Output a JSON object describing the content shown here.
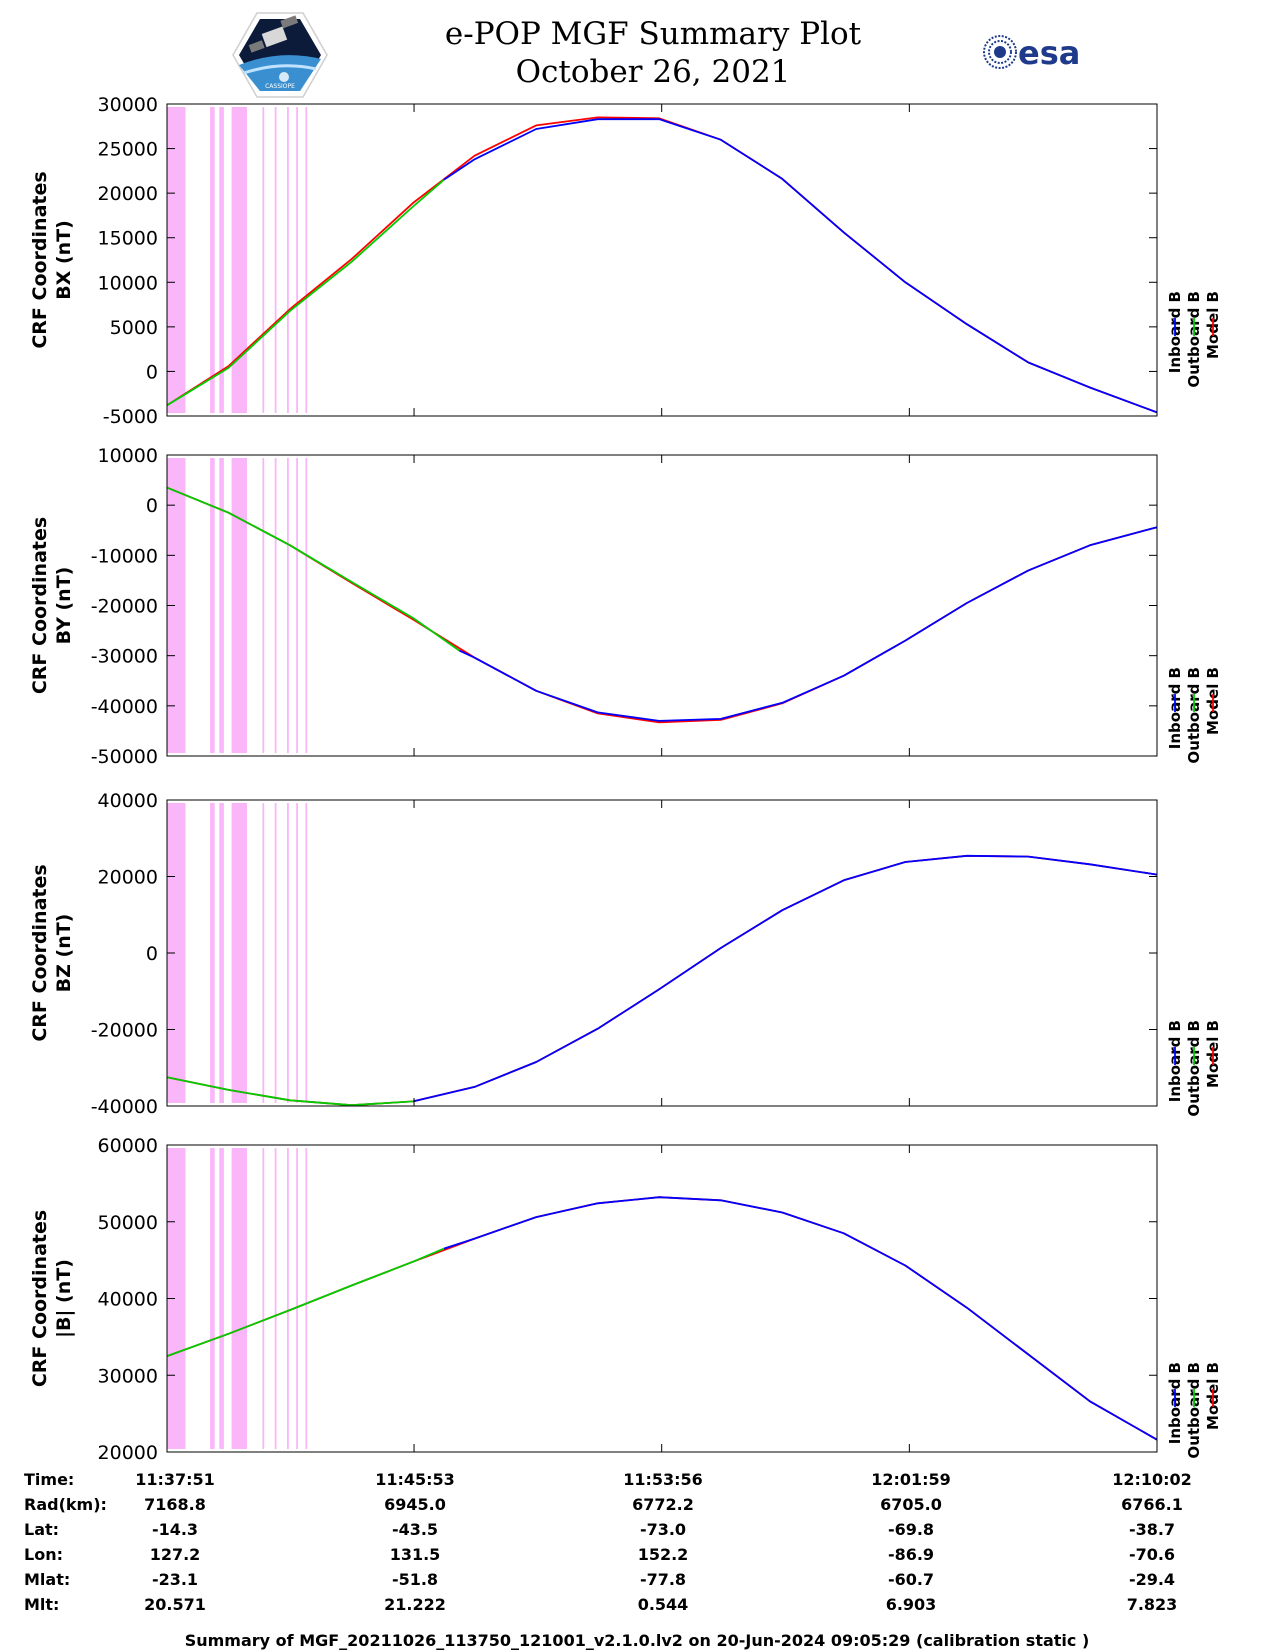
{
  "header": {
    "title_line1": "e-POP MGF Summary Plot",
    "title_line2": "October 26, 2021",
    "logo_left": "cassiope-mission-logo",
    "logo_left_text": "CASSIOPE",
    "logo_right_text": "esa"
  },
  "footer": {
    "summary": "Summary of MGF_20211026_113750_121001_v2.1.0.lv2 on 20-Jun-2024 09:05:29 (calibration static )"
  },
  "legend": {
    "entries": [
      {
        "name": "Inboard B",
        "color": "#0000ff"
      },
      {
        "name": "Outboard B",
        "color": "#00cc00"
      },
      {
        "name": "Model B",
        "color": "#ff0000"
      }
    ]
  },
  "info_table": {
    "row_labels": [
      "Time:",
      "Rad(km):",
      "Lat:",
      "Lon:",
      "Mlat:",
      "Mlt:"
    ],
    "columns": [
      [
        "11:37:51",
        "7168.8",
        "-14.3",
        "127.2",
        "-23.1",
        "20.571"
      ],
      [
        "11:45:53",
        "6945.0",
        "-43.5",
        "131.5",
        "-51.8",
        "21.222"
      ],
      [
        "11:53:56",
        "6772.2",
        "-73.0",
        "152.2",
        "-77.8",
        "0.544"
      ],
      [
        "12:01:59",
        "6705.0",
        "-69.8",
        "-86.9",
        "-60.7",
        "6.903"
      ],
      [
        "12:10:02",
        "6766.1",
        "-38.7",
        "-70.6",
        "-29.4",
        "7.823"
      ]
    ]
  },
  "colors": {
    "inboard": "#0000ff",
    "outboard": "#00cc00",
    "model": "#ff0000",
    "shading": "#f9b6f9"
  },
  "chart_data": [
    {
      "type": "line",
      "ylabel_line1": "CRF Coordinates",
      "ylabel_line2": "BX (nT)",
      "xlim_minutes": [
        0,
        32.18
      ],
      "ylim": [
        -5000,
        30000
      ],
      "yticks": [
        -5000,
        0,
        5000,
        10000,
        15000,
        20000,
        25000,
        30000
      ],
      "ytick_labels": [
        "-5000",
        "0",
        "5000",
        "10000",
        "15000",
        "20000",
        "25000",
        "30000"
      ],
      "xtick_minutes": [
        0,
        8.03,
        16.08,
        24.13,
        32.18
      ],
      "xtick_labels": [
        "11:37:51",
        "11:45:53",
        "11:53:56",
        "12:01:59",
        "12:10:02"
      ],
      "shaded_minutes": [
        [
          0,
          0.6
        ],
        [
          1.4,
          1.55
        ],
        [
          1.7,
          1.85
        ],
        [
          2.1,
          2.6
        ],
        [
          3.1,
          3.16
        ],
        [
          3.5,
          3.56
        ],
        [
          3.9,
          3.96
        ],
        [
          4.2,
          4.26
        ],
        [
          4.5,
          4.56
        ]
      ],
      "series": [
        {
          "name": "Model B",
          "x": [
            0,
            2,
            4,
            6,
            8,
            10,
            12,
            14,
            16,
            18,
            20,
            22,
            24,
            26,
            28,
            30,
            32.18
          ],
          "values": [
            -3800,
            600,
            7000,
            12600,
            18900,
            24200,
            27600,
            28500,
            28400,
            26000,
            21600,
            15600,
            10000,
            5300,
            1000,
            -1800,
            -4600
          ]
        },
        {
          "name": "Inboard B",
          "x": [
            9,
            10,
            12,
            14,
            16,
            18,
            20,
            22,
            24,
            26,
            28,
            30,
            32.18
          ],
          "values": [
            21500,
            23800,
            27200,
            28300,
            28300,
            26000,
            21600,
            15600,
            10000,
            5300,
            1000,
            -1800,
            -4600
          ]
        },
        {
          "name": "Outboard B",
          "x": [
            0,
            2,
            4,
            6,
            8,
            9
          ],
          "values": [
            -3800,
            400,
            6800,
            12300,
            18500,
            21500
          ]
        }
      ]
    },
    {
      "type": "line",
      "ylabel_line1": "CRF Coordinates",
      "ylabel_line2": "BY (nT)",
      "xlim_minutes": [
        0,
        32.18
      ],
      "ylim": [
        -50000,
        10000
      ],
      "yticks": [
        -50000,
        -40000,
        -30000,
        -20000,
        -10000,
        0,
        10000
      ],
      "ytick_labels": [
        "-50000",
        "-40000",
        "-30000",
        "-20000",
        "-10000",
        "0",
        "10000"
      ],
      "xtick_minutes": [
        0,
        8.03,
        16.08,
        24.13,
        32.18
      ],
      "xtick_labels": [
        "11:37:51",
        "11:45:53",
        "11:53:56",
        "12:01:59",
        "12:10:02"
      ],
      "shaded_minutes": [
        [
          0,
          0.6
        ],
        [
          1.4,
          1.55
        ],
        [
          1.7,
          1.85
        ],
        [
          2.1,
          2.6
        ],
        [
          3.1,
          3.16
        ],
        [
          3.5,
          3.56
        ],
        [
          3.9,
          3.96
        ],
        [
          4.2,
          4.26
        ],
        [
          4.5,
          4.56
        ]
      ],
      "series": [
        {
          "name": "Model B",
          "x": [
            0,
            2,
            4,
            6,
            8,
            10,
            12,
            14,
            16,
            18,
            20,
            22,
            24,
            26,
            28,
            30,
            32.18
          ],
          "values": [
            3500,
            -1500,
            -8000,
            -15500,
            -22800,
            -30400,
            -37000,
            -41500,
            -43300,
            -42800,
            -39500,
            -34000,
            -27000,
            -19500,
            -13000,
            -8000,
            -4400
          ]
        },
        {
          "name": "Inboard B",
          "x": [
            9.5,
            10,
            12,
            14,
            16,
            18,
            20,
            22,
            24,
            26,
            28,
            30,
            32.18
          ],
          "values": [
            -29000,
            -30400,
            -37000,
            -41300,
            -43000,
            -42600,
            -39400,
            -34000,
            -27000,
            -19500,
            -13000,
            -8000,
            -4400
          ]
        },
        {
          "name": "Outboard B",
          "x": [
            0,
            2,
            4,
            6,
            8,
            9.5
          ],
          "values": [
            3500,
            -1500,
            -8000,
            -15300,
            -22500,
            -29000
          ]
        }
      ]
    },
    {
      "type": "line",
      "ylabel_line1": "CRF Coordinates",
      "ylabel_line2": "BZ (nT)",
      "xlim_minutes": [
        0,
        32.18
      ],
      "ylim": [
        -40000,
        40000
      ],
      "yticks": [
        -40000,
        -20000,
        0,
        20000,
        40000
      ],
      "ytick_labels": [
        "-40000",
        "-20000",
        "0",
        "20000",
        "40000"
      ],
      "xtick_minutes": [
        0,
        8.03,
        16.08,
        24.13,
        32.18
      ],
      "xtick_labels": [
        "11:37:51",
        "11:45:53",
        "11:53:56",
        "12:01:59",
        "12:10:02"
      ],
      "shaded_minutes": [
        [
          0,
          0.6
        ],
        [
          1.4,
          1.55
        ],
        [
          1.7,
          1.85
        ],
        [
          2.1,
          2.6
        ],
        [
          3.1,
          3.16
        ],
        [
          3.5,
          3.56
        ],
        [
          3.9,
          3.96
        ],
        [
          4.2,
          4.26
        ],
        [
          4.5,
          4.56
        ]
      ],
      "series": [
        {
          "name": "Model B",
          "x": [
            0,
            2,
            4,
            6,
            8,
            10,
            12,
            14,
            16,
            18,
            20,
            22,
            24,
            26,
            28,
            30,
            32.18
          ],
          "values": [
            -32500,
            -35800,
            -38500,
            -39800,
            -38800,
            -35000,
            -28500,
            -19800,
            -9500,
            1300,
            11200,
            19000,
            23800,
            25400,
            25200,
            23200,
            20500
          ]
        },
        {
          "name": "Inboard B",
          "x": [
            8,
            10,
            12,
            14,
            16,
            18,
            20,
            22,
            24,
            26,
            28,
            30,
            32.18
          ],
          "values": [
            -38800,
            -35000,
            -28500,
            -19800,
            -9500,
            1300,
            11200,
            19000,
            23800,
            25400,
            25200,
            23200,
            20500
          ]
        },
        {
          "name": "Outboard B",
          "x": [
            0,
            2,
            4,
            6,
            8
          ],
          "values": [
            -32500,
            -35800,
            -38500,
            -39800,
            -38800
          ]
        }
      ]
    },
    {
      "type": "line",
      "ylabel_line1": "CRF Coordinates",
      "ylabel_line2": "|B| (nT)",
      "xlim_minutes": [
        0,
        32.18
      ],
      "ylim": [
        20000,
        60000
      ],
      "yticks": [
        20000,
        30000,
        40000,
        50000,
        60000
      ],
      "ytick_labels": [
        "20000",
        "30000",
        "40000",
        "50000",
        "60000"
      ],
      "xtick_minutes": [
        0,
        8.03,
        16.08,
        24.13,
        32.18
      ],
      "xtick_labels": [
        "11:37:51",
        "11:45:53",
        "11:53:56",
        "12:01:59",
        "12:10:02"
      ],
      "shaded_minutes": [
        [
          0,
          0.6
        ],
        [
          1.4,
          1.55
        ],
        [
          1.7,
          1.85
        ],
        [
          2.1,
          2.6
        ],
        [
          3.1,
          3.16
        ],
        [
          3.5,
          3.56
        ],
        [
          3.9,
          3.96
        ],
        [
          4.2,
          4.26
        ],
        [
          4.5,
          4.56
        ]
      ],
      "series": [
        {
          "name": "Model B",
          "x": [
            0,
            2,
            4,
            6,
            8,
            10,
            12,
            14,
            16,
            18,
            20,
            22,
            24,
            26,
            28,
            30,
            32.18
          ],
          "values": [
            32500,
            35400,
            38500,
            41700,
            44800,
            47800,
            50600,
            52400,
            53200,
            52800,
            51200,
            48500,
            44300,
            38800,
            32700,
            26600,
            21600
          ]
        },
        {
          "name": "Inboard B",
          "x": [
            9,
            10,
            12,
            14,
            16,
            18,
            20,
            22,
            24,
            26,
            28,
            30,
            32.18
          ],
          "values": [
            46500,
            47800,
            50600,
            52400,
            53200,
            52800,
            51200,
            48500,
            44300,
            38800,
            32700,
            26600,
            21600
          ]
        },
        {
          "name": "Outboard B",
          "x": [
            0,
            2,
            4,
            6,
            8,
            9
          ],
          "values": [
            32500,
            35400,
            38500,
            41700,
            44800,
            46500
          ]
        }
      ]
    }
  ]
}
